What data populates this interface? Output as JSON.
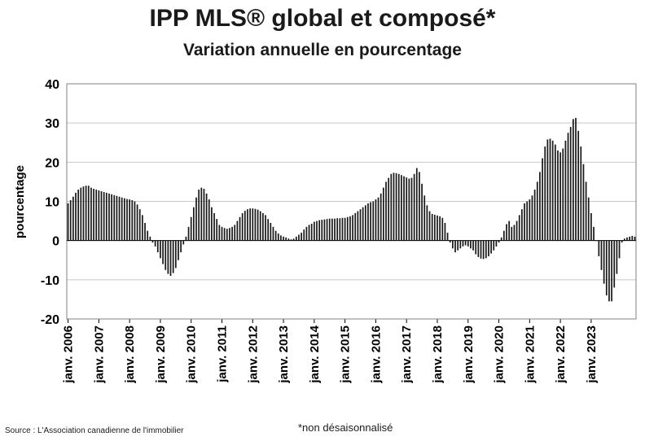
{
  "header": {
    "title": "IPP MLS® global et composé*",
    "subtitle": "Variation annuelle en pourcentage"
  },
  "footer": {
    "source": "Source : L'Association canadienne de l'immobilier",
    "note": "*non désaisonnalisé"
  },
  "colors": {
    "bar": "#1a1a1a",
    "grid": "#c8c8c8",
    "axis": "#000000"
  },
  "chart_data": {
    "type": "bar",
    "title": "IPP MLS® global et composé*",
    "subtitle": "Variation annuelle en pourcentage",
    "xlabel": "",
    "ylabel": "pourcentage",
    "ylim": [
      -20,
      40
    ],
    "yticks": [
      -20,
      -10,
      0,
      10,
      20,
      30,
      40
    ],
    "grid": true,
    "legend": "none",
    "x_start": "janv. 2006",
    "frequency": "monthly",
    "tick_labels": [
      "janv. 2006",
      "janv. 2007",
      "janv. 2008",
      "janv. 2009",
      "janv. 2010",
      "janv. 2011",
      "janv. 2012",
      "janv. 2013",
      "janv. 2014",
      "janv. 2015",
      "janv. 2016",
      "janv. 2017",
      "janv. 2018",
      "janv. 2019",
      "janv. 2020",
      "janv. 2021",
      "janv. 2022",
      "janv. 2023"
    ],
    "values": [
      9.5,
      10.3,
      11.2,
      12.2,
      13,
      13.5,
      13.8,
      14,
      14,
      13.5,
      13.2,
      13,
      12.8,
      12.6,
      12.4,
      12.2,
      12,
      11.8,
      11.6,
      11.4,
      11.2,
      11,
      10.8,
      10.6,
      10.5,
      10.3,
      10,
      9.2,
      8,
      6.5,
      4.5,
      2.5,
      1,
      -0.5,
      -1.5,
      -3,
      -4.5,
      -6,
      -7.5,
      -8.5,
      -9,
      -8.3,
      -7,
      -5,
      -3,
      -1,
      1,
      3.5,
      6,
      8.5,
      11,
      13,
      13.5,
      13.2,
      12,
      10.5,
      8.5,
      7,
      5.5,
      4,
      3.5,
      3.2,
      3,
      3.2,
      3.5,
      4,
      5,
      6,
      7,
      7.6,
      8,
      8.2,
      8.2,
      8.1,
      7.9,
      7.5,
      7,
      6.5,
      5.5,
      4.5,
      3.5,
      2.5,
      1.8,
      1.3,
      1,
      0.8,
      0.5,
      0.3,
      0.5,
      1,
      1.5,
      2,
      2.8,
      3.5,
      4,
      4.3,
      4.8,
      5,
      5.2,
      5.3,
      5.4,
      5.5,
      5.6,
      5.6,
      5.6,
      5.7,
      5.7,
      5.8,
      5.8,
      6,
      6.2,
      6.5,
      7,
      7.5,
      8,
      8.5,
      9,
      9.5,
      9.8,
      10,
      10.5,
      11,
      12,
      13.5,
      15,
      16,
      17,
      17.3,
      17.2,
      17,
      16.7,
      16.4,
      16.1,
      15.8,
      16,
      17,
      18.5,
      17.5,
      14.5,
      11.5,
      9,
      7.5,
      6.8,
      6.6,
      6.4,
      6.2,
      5.8,
      4.5,
      2,
      -0.5,
      -2,
      -3,
      -2.5,
      -2,
      -1.5,
      -1.2,
      -1.5,
      -2,
      -2.5,
      -3.5,
      -4.2,
      -4.6,
      -4.7,
      -4.5,
      -4,
      -3.3,
      -2.5,
      -1.5,
      -0.5,
      0.8,
      2.5,
      4.2,
      5,
      3.5,
      4,
      5,
      6.5,
      8,
      9.5,
      10,
      10.5,
      11.5,
      13,
      15,
      17.5,
      21,
      24,
      25.8,
      26,
      25.5,
      24.5,
      23,
      22.5,
      23.5,
      25.5,
      27.5,
      29,
      31,
      31.3,
      28,
      24,
      19.5,
      15,
      11,
      7,
      3.5,
      0,
      -4,
      -7.5,
      -11,
      -14,
      -15.5,
      -15.5,
      -12,
      -8.5,
      -4.5,
      -0.5,
      0.5,
      0.8,
      1,
      1.2,
      1
    ]
  }
}
